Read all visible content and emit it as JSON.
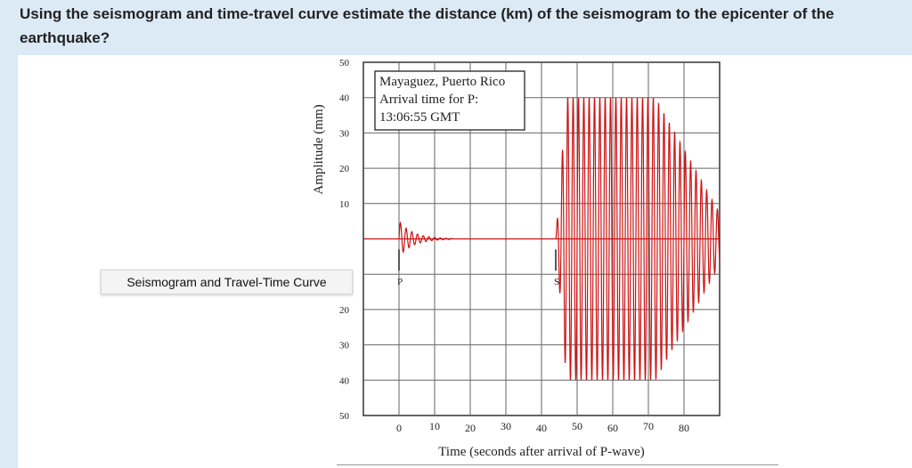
{
  "question": "Using the seismogram and time-travel curve estimate the distance (km) of the seismogram to the epicenter of the earthquake?",
  "tooltip": "Seismogram and Travel-Time Curve",
  "colors": {
    "trace": "#cc1111",
    "grid": "#555555",
    "header_bg": "#dbeaf5"
  },
  "chart_data": {
    "type": "line",
    "title": "",
    "xlabel": "Time (seconds after arrival of P-wave)",
    "ylabel": "Amplitude (mm)",
    "xlim": [
      -10,
      90
    ],
    "ylim": [
      -50,
      50
    ],
    "grid": true,
    "x_ticks": [
      "0",
      "10",
      "20",
      "30",
      "40",
      "50",
      "60",
      "70",
      "80"
    ],
    "y_ticks_upper": [
      "50",
      "40",
      "30",
      "20",
      "10"
    ],
    "y_ticks_lower": [
      "20",
      "30",
      "40",
      "50"
    ],
    "annotation": {
      "line1": "Mayaguez, Puerto Rico",
      "line2": "Arrival time for P:",
      "line3": "13:06:55 GMT"
    },
    "markers": [
      {
        "label": "P",
        "time": 0
      },
      {
        "label": "S",
        "time": 44
      }
    ],
    "series": [
      {
        "segment": "P-wave",
        "start": 0,
        "end": 15,
        "peak_amplitude": 5
      },
      {
        "segment": "S-wave",
        "start": 44,
        "end": 90,
        "peak_amplitude": 40
      }
    ]
  }
}
